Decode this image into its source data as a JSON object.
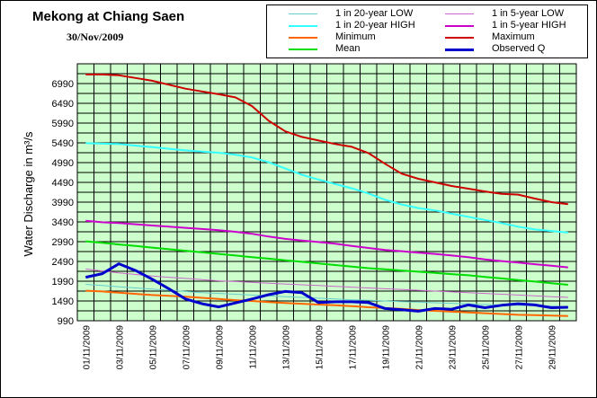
{
  "chart_data": {
    "type": "line",
    "title": "Mekong at Chiang Saen",
    "subtitle": "30/Nov/2009",
    "ylabel": "Water Discharge in m³/s",
    "xlabel": "",
    "ylim": [
      990,
      7490
    ],
    "yticks": [
      990,
      1490,
      1990,
      2490,
      2990,
      3490,
      3990,
      4490,
      4990,
      5490,
      5990,
      6490,
      6990
    ],
    "x": [
      "01/11/2009",
      "02/11/2009",
      "03/11/2009",
      "04/11/2009",
      "05/11/2009",
      "06/11/2009",
      "07/11/2009",
      "08/11/2009",
      "09/11/2009",
      "10/11/2009",
      "11/11/2009",
      "12/11/2009",
      "13/11/2009",
      "14/11/2009",
      "15/11/2009",
      "16/11/2009",
      "17/11/2009",
      "18/11/2009",
      "19/11/2009",
      "20/11/2009",
      "21/11/2009",
      "22/11/2009",
      "23/11/2009",
      "24/11/2009",
      "25/11/2009",
      "26/11/2009",
      "27/11/2009",
      "28/11/2009",
      "29/11/2009",
      "30/11/2009"
    ],
    "xtick_labels": [
      "01/11/2009",
      "03/11/2009",
      "05/11/2009",
      "07/11/2009",
      "09/11/2009",
      "11/11/2009",
      "13/11/2009",
      "15/11/2009",
      "17/11/2009",
      "19/11/2009",
      "21/11/2009",
      "23/11/2009",
      "25/11/2009",
      "27/11/2009",
      "29/11/2009"
    ],
    "grid": true,
    "background": "#ccffcc",
    "legend_position": "top-right",
    "series": [
      {
        "name": "1 in 20-year LOW",
        "color": "#66cccc",
        "width": 1,
        "values": [
          1910,
          1880,
          1850,
          1820,
          1790,
          1760,
          1730,
          1700,
          1680,
          1660,
          1640,
          1620,
          1600,
          1580,
          1560,
          1540,
          1520,
          1505,
          1490,
          1475,
          1460,
          1445,
          1430,
          1415,
          1400,
          1390,
          1380,
          1370,
          1360,
          1350
        ]
      },
      {
        "name": "1 in 5-year LOW",
        "color": "#cc66cc",
        "width": 1,
        "values": [
          2300,
          2250,
          2200,
          2160,
          2120,
          2090,
          2060,
          2030,
          2000,
          1980,
          1960,
          1940,
          1920,
          1900,
          1880,
          1860,
          1840,
          1820,
          1800,
          1780,
          1760,
          1740,
          1720,
          1700,
          1680,
          1660,
          1640,
          1620,
          1600,
          1580
        ]
      },
      {
        "name": "1 in 20-year HIGH",
        "color": "#33ffff",
        "width": 2,
        "values": [
          5480,
          5470,
          5460,
          5420,
          5380,
          5340,
          5300,
          5270,
          5240,
          5190,
          5120,
          5000,
          4840,
          4680,
          4560,
          4450,
          4340,
          4210,
          4050,
          3930,
          3840,
          3780,
          3700,
          3620,
          3540,
          3460,
          3370,
          3300,
          3260,
          3220
        ]
      },
      {
        "name": "1 in 5-year HIGH",
        "color": "#cc00cc",
        "width": 2,
        "values": [
          3520,
          3480,
          3460,
          3430,
          3400,
          3370,
          3340,
          3310,
          3280,
          3240,
          3190,
          3120,
          3060,
          3020,
          2980,
          2940,
          2880,
          2830,
          2780,
          2750,
          2710,
          2680,
          2640,
          2600,
          2540,
          2500,
          2460,
          2420,
          2380,
          2340
        ]
      },
      {
        "name": "Minimum",
        "color": "#ff6600",
        "width": 2,
        "values": [
          1750,
          1730,
          1700,
          1670,
          1640,
          1620,
          1600,
          1570,
          1540,
          1510,
          1490,
          1460,
          1440,
          1420,
          1400,
          1380,
          1360,
          1330,
          1310,
          1290,
          1260,
          1240,
          1220,
          1200,
          1180,
          1160,
          1140,
          1130,
          1120,
          1110
        ]
      },
      {
        "name": "Maximum",
        "color": "#cc0000",
        "width": 2,
        "values": [
          7220,
          7220,
          7200,
          7130,
          7060,
          6960,
          6860,
          6790,
          6720,
          6640,
          6420,
          6050,
          5780,
          5640,
          5550,
          5460,
          5390,
          5230,
          4960,
          4710,
          4580,
          4490,
          4400,
          4330,
          4260,
          4200,
          4180,
          4080,
          3990,
          3940
        ]
      },
      {
        "name": "Mean",
        "color": "#00dd00",
        "width": 2,
        "values": [
          3000,
          2960,
          2920,
          2880,
          2840,
          2800,
          2760,
          2720,
          2680,
          2640,
          2600,
          2560,
          2520,
          2480,
          2440,
          2400,
          2360,
          2320,
          2290,
          2260,
          2230,
          2200,
          2170,
          2140,
          2100,
          2060,
          2020,
          1980,
          1940,
          1900
        ]
      },
      {
        "name": "Observed Q",
        "color": "#0000cc",
        "width": 3,
        "values": [
          2090,
          2180,
          2430,
          2260,
          2040,
          1800,
          1540,
          1420,
          1340,
          1440,
          1540,
          1650,
          1730,
          1700,
          1450,
          1470,
          1470,
          1450,
          1300,
          1270,
          1230,
          1300,
          1280,
          1390,
          1320,
          1380,
          1420,
          1390,
          1320,
          1330
        ]
      }
    ]
  }
}
